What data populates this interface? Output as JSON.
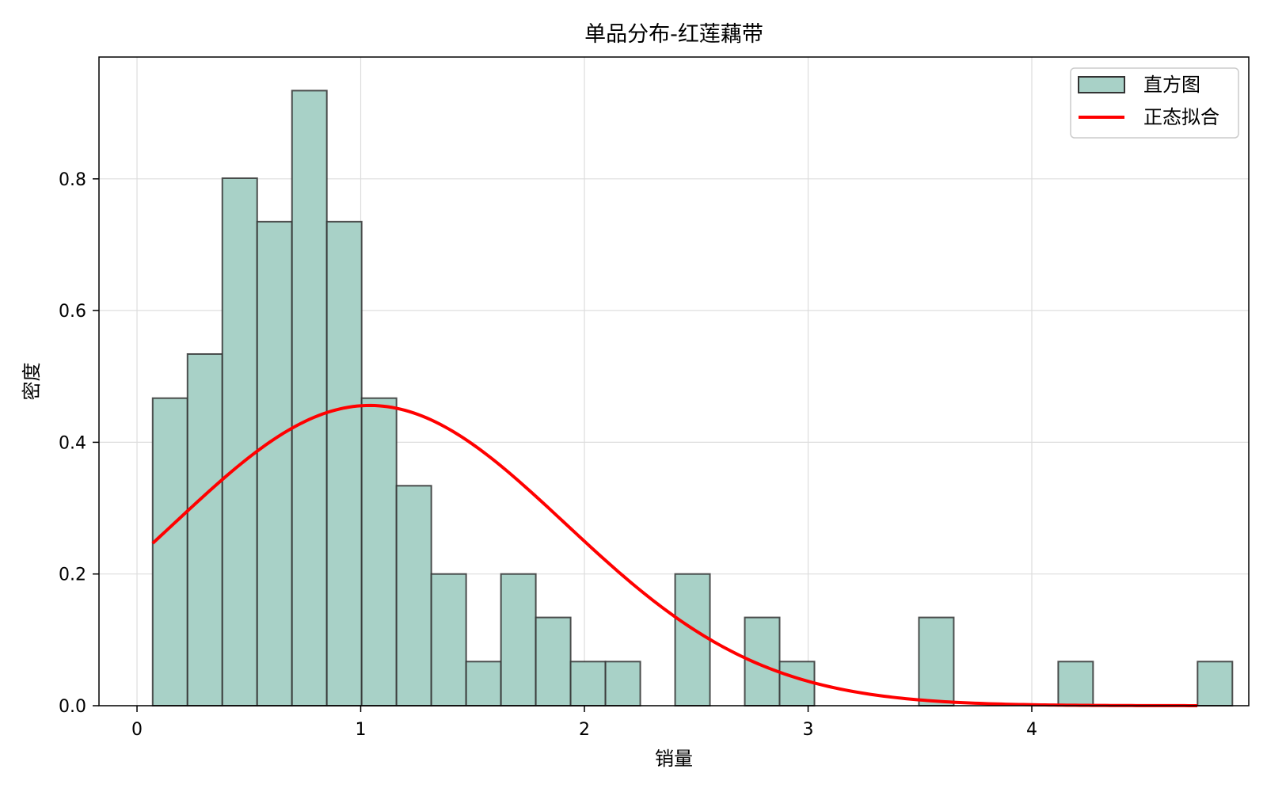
{
  "chart_data": {
    "type": "bar",
    "title": "单品分布-红莲藕带",
    "xlabel": "销量",
    "ylabel": "密度",
    "xlim": [
      -0.17,
      4.97
    ],
    "ylim": [
      0,
      0.985
    ],
    "xticks": [
      0,
      1,
      2,
      3,
      4
    ],
    "xtick_labels": [
      "0",
      "1",
      "2",
      "3",
      "4"
    ],
    "yticks": [
      0.0,
      0.2,
      0.4,
      0.6,
      0.8
    ],
    "ytick_labels": [
      "0.0",
      "0.2",
      "0.4",
      "0.6",
      "0.8"
    ],
    "grid": true,
    "legend_position": "upper right",
    "histogram": {
      "name": "直方图",
      "color": "#a8d1c7",
      "edgecolor": "#333333",
      "bin_start": 0.07,
      "bin_width": 0.1557,
      "values": [
        0.467,
        0.534,
        0.801,
        0.735,
        0.934,
        0.735,
        0.467,
        0.334,
        0.2,
        0.067,
        0.2,
        0.134,
        0.067,
        0.067,
        0.0,
        0.2,
        0.0,
        0.134,
        0.067,
        0.0,
        0.0,
        0.0,
        0.134,
        0.0,
        0.0,
        0.0,
        0.067,
        0.0,
        0.0,
        0.0,
        0.067
      ]
    },
    "normal_fit": {
      "name": "正态拟合",
      "color": "#ff0000",
      "mean": 1.04,
      "std": 0.875,
      "x_range": [
        0.07,
        4.74
      ]
    }
  }
}
